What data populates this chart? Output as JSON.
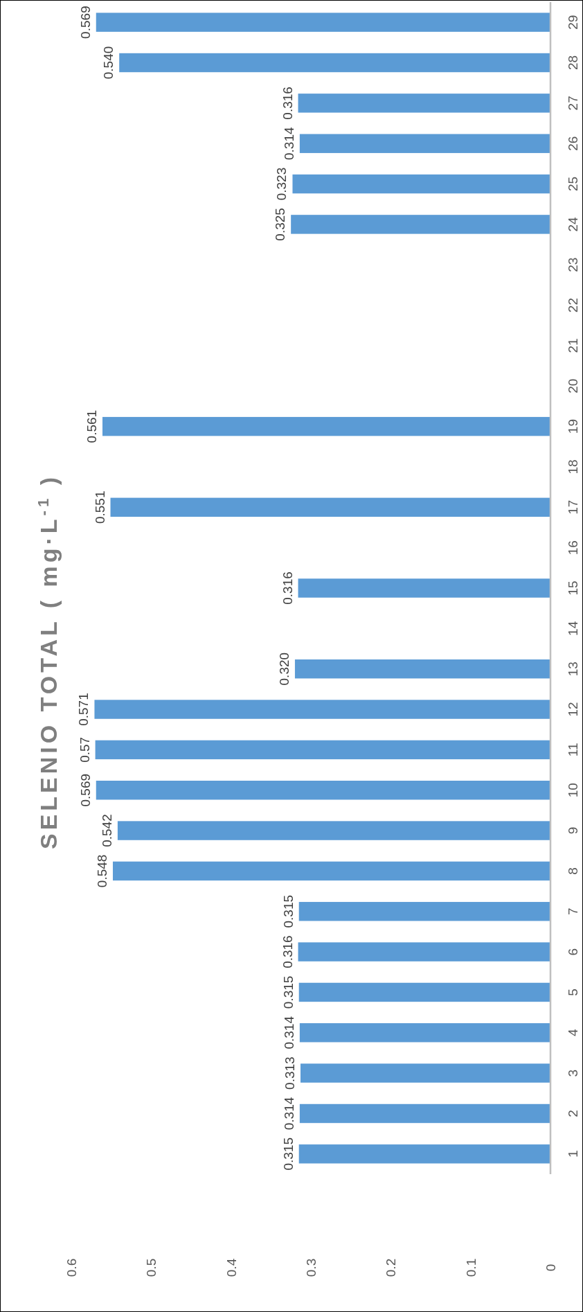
{
  "chart_data": {
    "type": "bar",
    "title": "SELENIO TOTAL ( mg·L$^{-1}$ )",
    "orientation": "horizontal",
    "categories": [
      "29",
      "28",
      "27",
      "26",
      "25",
      "24",
      "23",
      "22",
      "21",
      "20",
      "19",
      "18",
      "17",
      "16",
      "15",
      "14",
      "13",
      "12",
      "11",
      "10",
      "9",
      "8",
      "7",
      "6",
      "5",
      "4",
      "3",
      "2",
      "1"
    ],
    "values": [
      0.569,
      0.54,
      0.316,
      0.314,
      0.323,
      0.325,
      null,
      null,
      null,
      null,
      0.561,
      null,
      0.551,
      null,
      0.316,
      null,
      0.32,
      0.571,
      0.57,
      0.569,
      0.542,
      0.548,
      0.315,
      0.316,
      0.315,
      0.314,
      0.313,
      0.314,
      0.315
    ],
    "value_labels": [
      "0.569",
      "0.540",
      "0.316",
      "0.314",
      "0.323",
      "0.325",
      null,
      null,
      null,
      null,
      "0.561",
      null,
      "0.551",
      null,
      "0.316",
      null,
      "0.320",
      "0.571",
      "0.57",
      "0.569",
      "0.542",
      "0.548",
      "0.315",
      "0.316",
      "0.315",
      "0.314",
      "0.313",
      "0.314",
      "0.315"
    ],
    "color": "#5b9bd5",
    "xlim": [
      0.6,
      0
    ],
    "xticks": [
      0.6,
      0.5,
      0.4,
      0.3,
      0.2,
      0.1,
      0
    ],
    "grid": false
  }
}
